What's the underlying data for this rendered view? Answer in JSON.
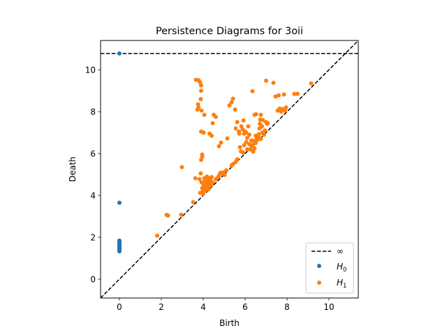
{
  "chart_data": {
    "type": "scatter",
    "title": "Persistence Diagrams for 3oii",
    "xlabel": "Birth",
    "ylabel": "Death",
    "xlim": [
      -0.9,
      11.4
    ],
    "ylim": [
      -0.9,
      11.4
    ],
    "xticks": [
      0,
      2,
      4,
      6,
      8,
      10
    ],
    "yticks": [
      0,
      2,
      4,
      6,
      8,
      10
    ],
    "grid": false,
    "legend_position": "lower-right",
    "infinity_line": {
      "label": "∞",
      "y": 10.78,
      "color": "#000000",
      "style": "dashed"
    },
    "diagonal": {
      "color": "#000000",
      "style": "dashed"
    },
    "series": [
      {
        "name": "H0",
        "legend_base": "H",
        "legend_sub": "0",
        "color": "#1f77b4",
        "points": [
          [
            0,
            10.78
          ],
          [
            0,
            3.65
          ],
          [
            0,
            1.33
          ],
          [
            0,
            1.36
          ],
          [
            0,
            1.39
          ],
          [
            0,
            1.42
          ],
          [
            0,
            1.45
          ],
          [
            0,
            1.48
          ],
          [
            0,
            1.51
          ],
          [
            0,
            1.54
          ],
          [
            0,
            1.57
          ],
          [
            0,
            1.6
          ],
          [
            0,
            1.63
          ],
          [
            0,
            1.66
          ],
          [
            0,
            1.69
          ],
          [
            0,
            1.72
          ],
          [
            0,
            1.75
          ],
          [
            0,
            1.78
          ],
          [
            0,
            1.81
          ],
          [
            0,
            1.84
          ]
        ]
      },
      {
        "name": "H1",
        "legend_base": "H",
        "legend_sub": "1",
        "color": "#ff7f0e",
        "points": [
          [
            1.8,
            2.08
          ],
          [
            2.25,
            3.07
          ],
          [
            2.32,
            3.04
          ],
          [
            2.95,
            3.08
          ],
          [
            2.98,
            5.35
          ],
          [
            3.52,
            3.68
          ],
          [
            3.65,
            9.52
          ],
          [
            3.78,
            9.5
          ],
          [
            3.85,
            9.4
          ],
          [
            3.9,
            9.25
          ],
          [
            3.9,
            9.0
          ],
          [
            3.88,
            8.6
          ],
          [
            3.75,
            8.35
          ],
          [
            3.78,
            8.2
          ],
          [
            3.92,
            8.05
          ],
          [
            3.72,
            8.1
          ],
          [
            3.9,
            7.05
          ],
          [
            4.02,
            7.0
          ],
          [
            4.05,
            7.85
          ],
          [
            4.3,
            6.95
          ],
          [
            4.4,
            6.85
          ],
          [
            4.45,
            7.45
          ],
          [
            4.5,
            7.85
          ],
          [
            4.6,
            7.75
          ],
          [
            4.75,
            6.35
          ],
          [
            4.85,
            6.52
          ],
          [
            3.95,
            5.95
          ],
          [
            3.95,
            5.85
          ],
          [
            3.9,
            5.7
          ],
          [
            3.62,
            4.82
          ],
          [
            3.82,
            4.78
          ],
          [
            3.88,
            5.05
          ],
          [
            3.92,
            4.62
          ],
          [
            3.95,
            4.35
          ],
          [
            3.98,
            4.2
          ],
          [
            4.0,
            4.08
          ],
          [
            4.02,
            4.5
          ],
          [
            4.05,
            4.82
          ],
          [
            4.08,
            4.68
          ],
          [
            4.1,
            4.38
          ],
          [
            4.12,
            4.25
          ],
          [
            4.15,
            4.55
          ],
          [
            4.18,
            4.9
          ],
          [
            4.2,
            4.7
          ],
          [
            4.22,
            4.42
          ],
          [
            4.25,
            4.3
          ],
          [
            4.28,
            4.6
          ],
          [
            4.3,
            4.82
          ],
          [
            4.32,
            4.45
          ],
          [
            4.35,
            4.72
          ],
          [
            4.38,
            4.5
          ],
          [
            4.4,
            4.88
          ],
          [
            4.45,
            4.62
          ],
          [
            3.85,
            4.12
          ],
          [
            4.15,
            4.72
          ],
          [
            4.6,
            4.78
          ],
          [
            4.7,
            4.85
          ],
          [
            4.75,
            4.95
          ],
          [
            4.82,
            5.08
          ],
          [
            4.9,
            5.05
          ],
          [
            4.95,
            5.1
          ],
          [
            5.02,
            4.98
          ],
          [
            5.1,
            5.2
          ],
          [
            5.35,
            5.42
          ],
          [
            5.42,
            5.5
          ],
          [
            5.55,
            5.6
          ],
          [
            5.62,
            5.72
          ],
          [
            5.15,
            6.72
          ],
          [
            5.25,
            8.3
          ],
          [
            5.35,
            8.45
          ],
          [
            5.42,
            8.62
          ],
          [
            5.52,
            8.1
          ],
          [
            5.55,
            7.2
          ],
          [
            5.62,
            7.5
          ],
          [
            5.7,
            7.05
          ],
          [
            5.72,
            6.95
          ],
          [
            5.82,
            7.3
          ],
          [
            5.88,
            7.15
          ],
          [
            5.92,
            7.58
          ],
          [
            5.95,
            6.95
          ],
          [
            6.0,
            7.05
          ],
          [
            6.05,
            7.0
          ],
          [
            6.1,
            6.75
          ],
          [
            6.15,
            7.3
          ],
          [
            6.2,
            6.45
          ],
          [
            6.25,
            6.2
          ],
          [
            6.3,
            6.62
          ],
          [
            6.35,
            6.4
          ],
          [
            6.38,
            6.1
          ],
          [
            6.4,
            6.6
          ],
          [
            6.45,
            6.25
          ],
          [
            6.5,
            6.5
          ],
          [
            6.55,
            6.72
          ],
          [
            6.58,
            6.65
          ],
          [
            6.62,
            6.8
          ],
          [
            6.65,
            6.92
          ],
          [
            6.68,
            7.2
          ],
          [
            6.7,
            7.42
          ],
          [
            6.72,
            7.62
          ],
          [
            6.75,
            6.7
          ],
          [
            6.8,
            7.3
          ],
          [
            6.82,
            7.0
          ],
          [
            6.85,
            7.6
          ],
          [
            6.9,
            6.9
          ],
          [
            6.95,
            7.1
          ],
          [
            7.0,
            7.5
          ],
          [
            7.05,
            7.42
          ],
          [
            7.08,
            7.45
          ],
          [
            6.45,
            7.85
          ],
          [
            6.52,
            7.88
          ],
          [
            6.75,
            7.85
          ],
          [
            7.0,
            9.48
          ],
          [
            6.35,
            8.98
          ],
          [
            7.35,
            9.38
          ],
          [
            7.45,
            8.72
          ],
          [
            7.6,
            8.78
          ],
          [
            7.85,
            8.82
          ],
          [
            7.55,
            8.05
          ],
          [
            7.65,
            8.15
          ],
          [
            7.72,
            8.0
          ],
          [
            7.8,
            8.12
          ],
          [
            7.9,
            8.05
          ],
          [
            7.95,
            8.2
          ],
          [
            8.35,
            8.85
          ],
          [
            8.5,
            8.85
          ],
          [
            9.15,
            9.35
          ],
          [
            5.9,
            6.05
          ],
          [
            5.75,
            6.3
          ],
          [
            6.05,
            6.55
          ],
          [
            6.1,
            6.2
          ],
          [
            6.3,
            6.35
          ],
          [
            6.45,
            6.55
          ],
          [
            5.8,
            6.1
          ],
          [
            5.95,
            6.4
          ],
          [
            6.2,
            6.9
          ],
          [
            6.5,
            6.85
          ]
        ]
      }
    ]
  }
}
